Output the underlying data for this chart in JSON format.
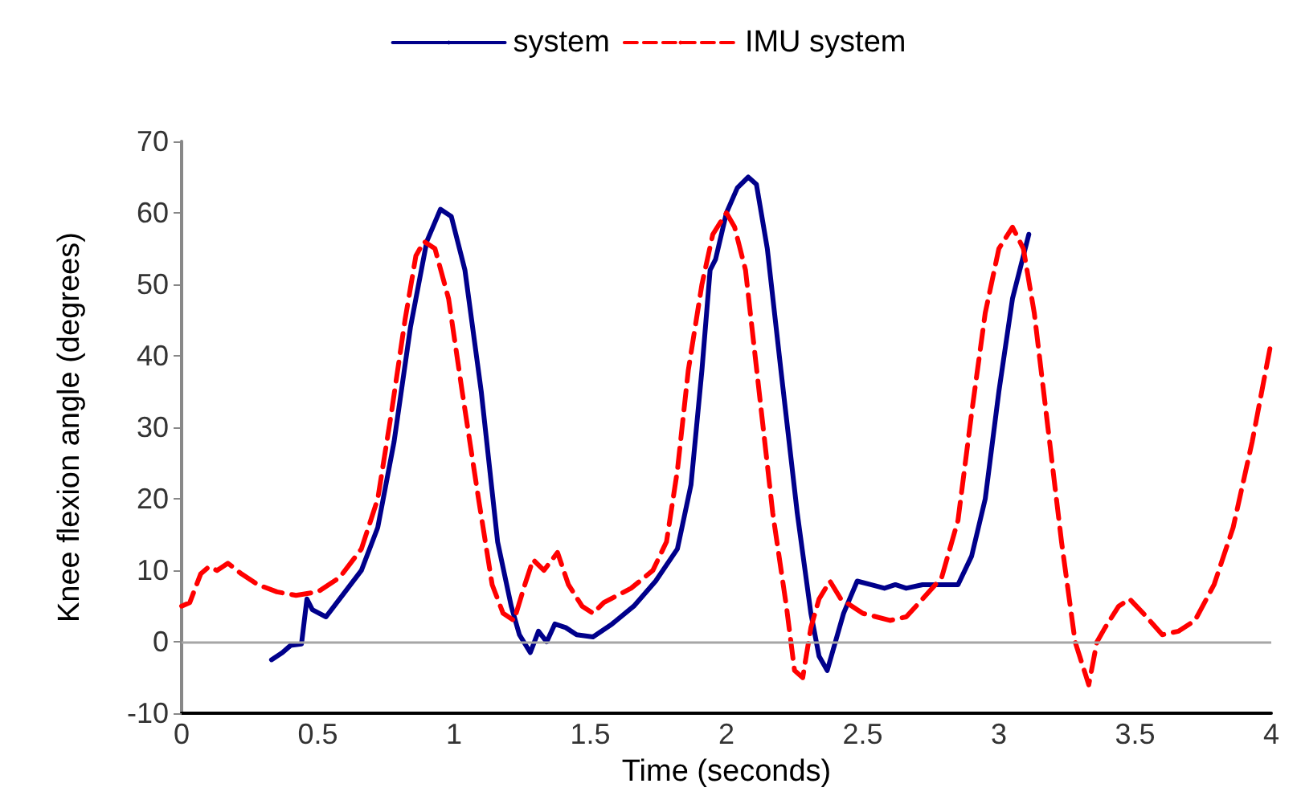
{
  "chart_data": {
    "type": "line",
    "xlabel": "Time (seconds)",
    "ylabel": "Knee flexion angle (degrees)",
    "xlim": [
      0,
      4
    ],
    "xticks": [
      0,
      0.5,
      1,
      1.5,
      2,
      2.5,
      3,
      3.5,
      4
    ],
    "ylim": [
      -10,
      70
    ],
    "yticks": [
      -10,
      0,
      10,
      20,
      30,
      40,
      50,
      60,
      70
    ],
    "grid": false,
    "legend": "top",
    "marker": "none",
    "ref_lines": [
      {
        "axis": "y",
        "value": 0,
        "color": "#a6a6a6"
      }
    ],
    "series": [
      {
        "name": "system",
        "color": "#00008b",
        "line_style": "solid",
        "x": [
          0.33,
          0.37,
          0.4,
          0.44,
          0.46,
          0.48,
          0.53,
          0.6,
          0.66,
          0.72,
          0.78,
          0.84,
          0.9,
          0.95,
          0.99,
          1.04,
          1.1,
          1.16,
          1.21,
          1.24,
          1.28,
          1.31,
          1.34,
          1.37,
          1.41,
          1.45,
          1.51,
          1.58,
          1.66,
          1.74,
          1.82,
          1.87,
          1.91,
          1.94,
          1.96,
          2.0,
          2.04,
          2.08,
          2.11,
          2.15,
          2.2,
          2.26,
          2.31,
          2.34,
          2.37,
          2.4,
          2.43,
          2.48,
          2.53,
          2.58,
          2.62,
          2.66,
          2.72,
          2.78,
          2.85,
          2.9,
          2.95,
          3.0,
          3.05,
          3.11
        ],
        "values": [
          -2.5,
          -1.5,
          -0.5,
          -0.3,
          6,
          4.5,
          3.5,
          7,
          10,
          16,
          28,
          44,
          56,
          60.5,
          59.5,
          52,
          35,
          14,
          5,
          1,
          -1.5,
          1.5,
          0,
          2.5,
          2,
          1,
          0.7,
          2.5,
          5,
          8.5,
          13,
          22,
          38,
          52,
          53.5,
          60,
          63.5,
          65,
          64,
          55,
          38,
          18,
          4,
          -2,
          -4,
          0,
          4,
          8.5,
          8,
          7.5,
          8,
          7.5,
          8,
          8,
          8,
          12,
          20,
          35,
          48,
          57
        ]
      },
      {
        "name": "IMU system",
        "color": "#ff0000",
        "line_style": "dashed",
        "x": [
          0,
          0.03,
          0.07,
          0.1,
          0.13,
          0.17,
          0.22,
          0.28,
          0.35,
          0.42,
          0.5,
          0.58,
          0.66,
          0.72,
          0.77,
          0.82,
          0.86,
          0.89,
          0.93,
          0.98,
          1.03,
          1.09,
          1.14,
          1.18,
          1.22,
          1.26,
          1.29,
          1.33,
          1.38,
          1.42,
          1.47,
          1.51,
          1.55,
          1.65,
          1.73,
          1.78,
          1.82,
          1.86,
          1.91,
          1.95,
          2.0,
          2.03,
          2.07,
          2.12,
          2.17,
          2.22,
          2.25,
          2.28,
          2.31,
          2.34,
          2.38,
          2.42,
          2.5,
          2.6,
          2.66,
          2.72,
          2.79,
          2.85,
          2.9,
          2.95,
          3.0,
          3.05,
          3.09,
          3.13,
          3.18,
          3.23,
          3.28,
          3.33,
          3.36,
          3.39,
          3.44,
          3.48,
          3.53,
          3.6,
          3.66,
          3.72,
          3.79,
          3.86,
          3.93,
          4.0
        ],
        "values": [
          5,
          5.5,
          9.5,
          10.5,
          10,
          11,
          9.5,
          8,
          7,
          6.5,
          7,
          9,
          13,
          20,
          32,
          45,
          54,
          56,
          55,
          48,
          35,
          20,
          8,
          4,
          3,
          8,
          11.5,
          10,
          12.5,
          8,
          5,
          4,
          5.5,
          7.5,
          10,
          14,
          24,
          38,
          50,
          57,
          60,
          58,
          52,
          35,
          18,
          5,
          -4,
          -5,
          2,
          6,
          8.5,
          6,
          4,
          3,
          3.5,
          6,
          9,
          17,
          32,
          46,
          55,
          58,
          55,
          46,
          30,
          14,
          0,
          -6,
          0,
          2,
          5,
          6,
          4,
          1,
          1.5,
          3,
          8,
          16,
          28,
          42
        ]
      }
    ]
  }
}
